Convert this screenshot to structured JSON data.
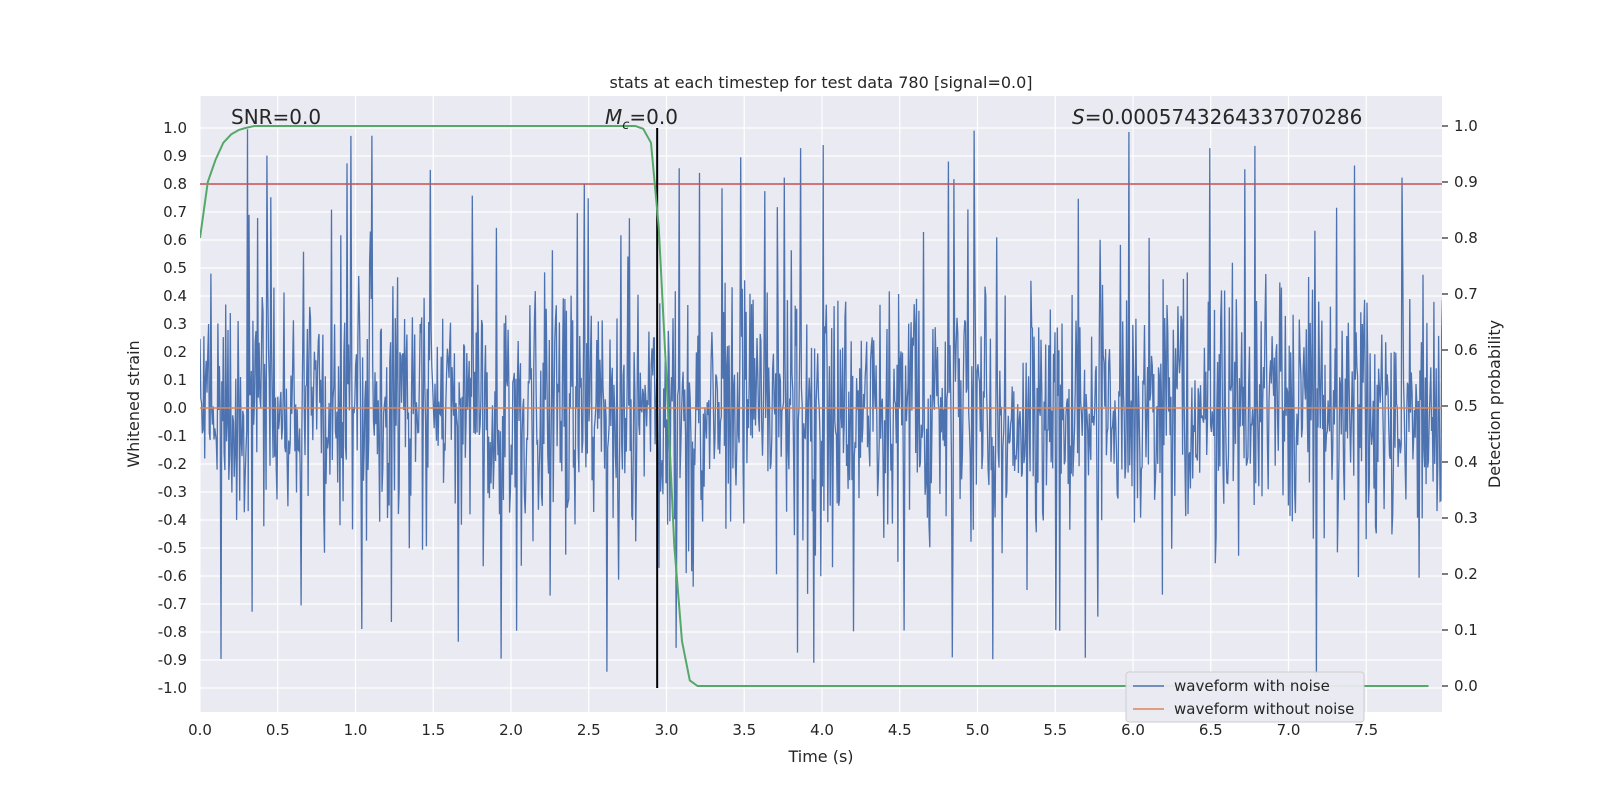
{
  "chart_data": {
    "type": "line",
    "title": "stats at each timestep for test data 780 [signal=0.0]",
    "xlabel": "Time (s)",
    "ylabel_left": "Whitened strain",
    "ylabel_right": "Detection probability",
    "xlim": [
      0.0,
      8.0
    ],
    "ylim_left": [
      -1.08,
      1.1
    ],
    "ylim_right": [
      -0.05,
      1.05
    ],
    "x_ticks": [
      "0.0",
      "0.5",
      "1.0",
      "1.5",
      "2.0",
      "2.5",
      "3.0",
      "3.5",
      "4.0",
      "4.5",
      "5.0",
      "5.5",
      "6.0",
      "6.5",
      "7.0",
      "7.5"
    ],
    "y_left_ticks": [
      "1.0",
      "0.9",
      "0.8",
      "0.7",
      "0.6",
      "0.5",
      "0.4",
      "0.3",
      "0.2",
      "0.1",
      "0.0",
      "-0.1",
      "-0.2",
      "-0.3",
      "-0.4",
      "-0.5",
      "-0.6",
      "-0.7",
      "-0.8",
      "-0.9",
      "-1.0"
    ],
    "y_right_ticks": [
      "1.0",
      "0.9",
      "0.8",
      "0.7",
      "0.6",
      "0.5",
      "0.4",
      "0.3",
      "0.2",
      "0.1",
      "0.0"
    ],
    "grid": true,
    "legend_position": "lower-right",
    "annotations": {
      "snr": "SNR=0.0",
      "mc_symbol": "M",
      "mc_sub": "c",
      "mc_value": "=0.0",
      "s_symbol": "S",
      "s_value": "=0.0005743264337070286"
    },
    "series": [
      {
        "name": "waveform with noise",
        "color": "#4c72b0",
        "axis": "left",
        "description_of_envelope": "dense noise, amplitude mostly within ±0.55 with spikes to about ±1.0",
        "x": [
          0.0,
          8.0
        ],
        "y": [
          0.0,
          0.0
        ]
      },
      {
        "name": "waveform without noise",
        "color": "#dd8452",
        "axis": "left",
        "x": [
          0.0,
          8.0
        ],
        "y": [
          0.0,
          0.0
        ]
      },
      {
        "name": "detection probability",
        "color": "#55a868",
        "axis": "right",
        "x": [
          0.0,
          0.05,
          0.1,
          0.15,
          0.2,
          0.25,
          0.3,
          0.35,
          0.4,
          1.0,
          2.0,
          2.6,
          2.75,
          2.8,
          2.85,
          2.9,
          2.95,
          3.0,
          3.05,
          3.1,
          3.15,
          3.2,
          3.3,
          4.0,
          7.9
        ],
        "y": [
          0.8,
          0.9,
          0.94,
          0.97,
          0.985,
          0.993,
          0.997,
          1.0,
          1.0,
          1.0,
          1.0,
          1.0,
          1.0,
          1.0,
          0.995,
          0.97,
          0.82,
          0.55,
          0.25,
          0.08,
          0.01,
          0.0,
          0.0,
          0.0,
          0.0
        ]
      }
    ],
    "threshold_line": {
      "axis": "left",
      "y": 0.8,
      "color": "#c44e52"
    },
    "marker_line": {
      "x": 2.94,
      "y_range": [
        -1.0,
        1.0
      ],
      "color": "#000000"
    },
    "noise_stats": {
      "typical_amplitude": 0.5,
      "spike_amplitude": 1.0,
      "samples": 1600
    }
  }
}
